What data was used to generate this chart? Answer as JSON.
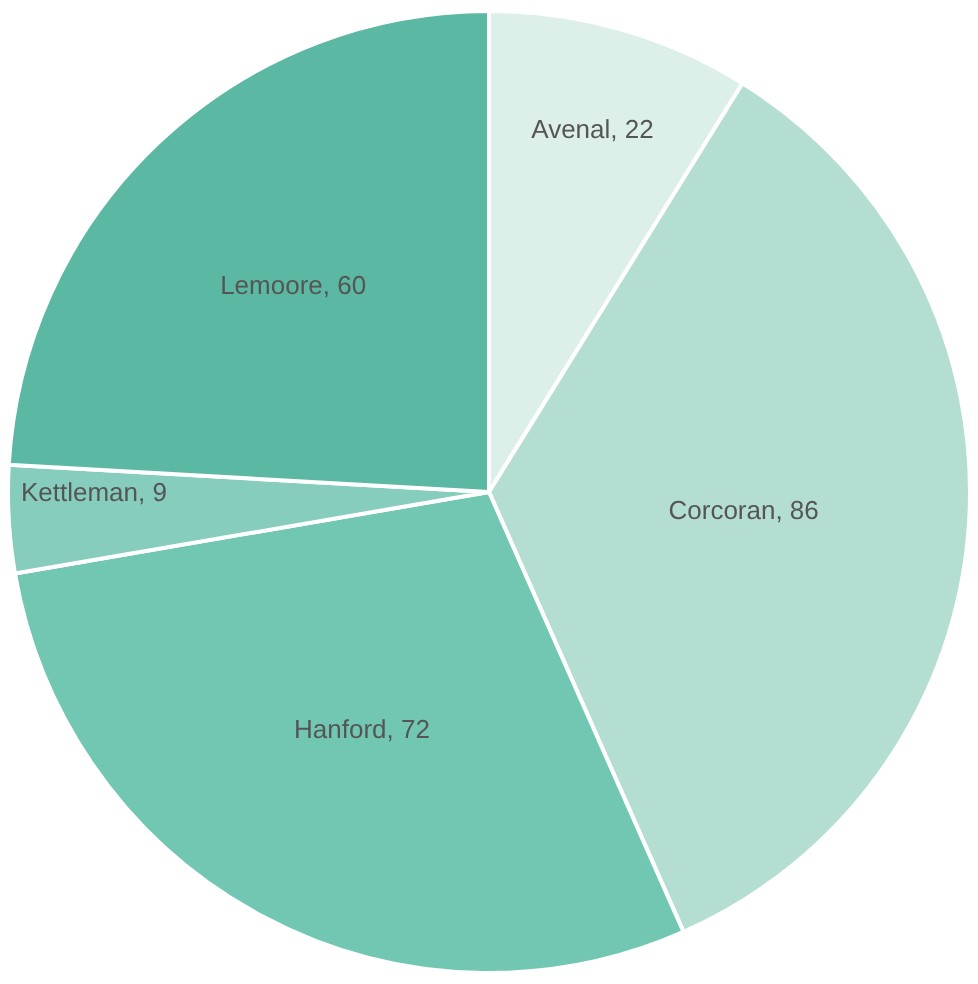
{
  "chart_data": {
    "type": "pie",
    "categories": [
      "Avenal, 22",
      "Corcoran, 86",
      "Hanford, 72",
      "Kettleman, 9",
      "Lemoore, 60"
    ],
    "values": [
      22,
      86,
      72,
      9,
      60
    ],
    "colors": [
      "#dcefe9",
      "#b5ded3",
      "#72c7b3",
      "#86cdbd",
      "#5bb8a2"
    ],
    "legend": false
  }
}
